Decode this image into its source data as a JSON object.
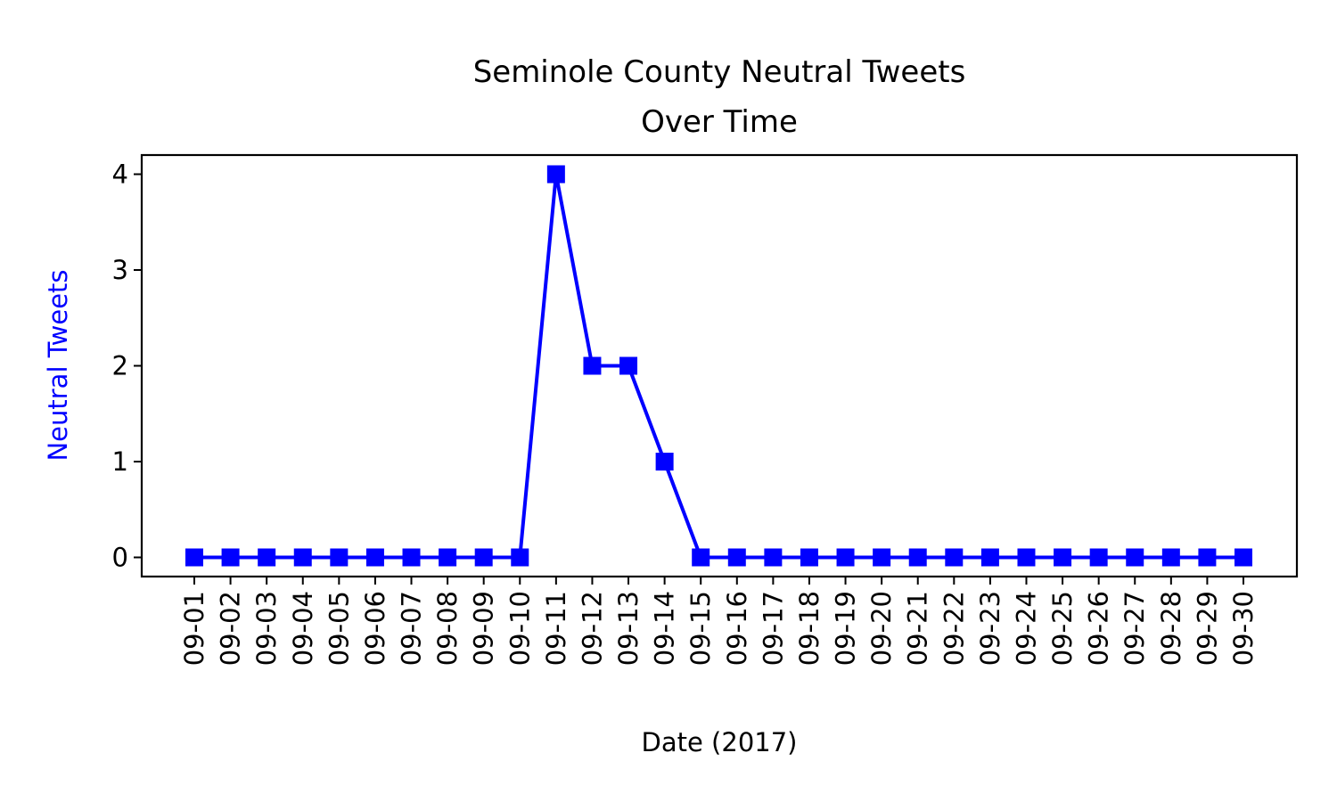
{
  "chart_data": {
    "type": "line",
    "title_line1": "Seminole County Neutral Tweets",
    "title_line2": "Over Time",
    "xlabel": "Date (2017)",
    "ylabel": "Neutral Tweets",
    "categories": [
      "09-01",
      "09-02",
      "09-03",
      "09-04",
      "09-05",
      "09-06",
      "09-07",
      "09-08",
      "09-09",
      "09-10",
      "09-11",
      "09-12",
      "09-13",
      "09-14",
      "09-15",
      "09-16",
      "09-17",
      "09-18",
      "09-19",
      "09-20",
      "09-21",
      "09-22",
      "09-23",
      "09-24",
      "09-25",
      "09-26",
      "09-27",
      "09-28",
      "09-29",
      "09-30"
    ],
    "values": [
      0,
      0,
      0,
      0,
      0,
      0,
      0,
      0,
      0,
      0,
      4,
      2,
      2,
      1,
      0,
      0,
      0,
      0,
      0,
      0,
      0,
      0,
      0,
      0,
      0,
      0,
      0,
      0,
      0,
      0
    ],
    "yticks": [
      "0",
      "1",
      "2",
      "3",
      "4"
    ],
    "ylim": [
      -0.2,
      4.2
    ],
    "line_color": "#0000ff",
    "ylabel_color": "#0000ff",
    "marker": "square",
    "grid": false,
    "legend": false
  }
}
